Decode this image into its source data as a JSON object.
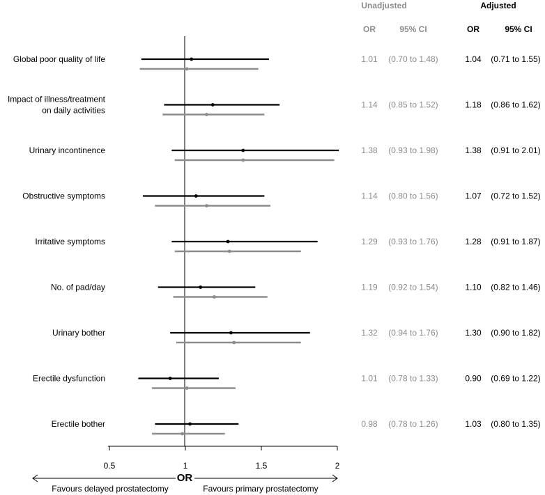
{
  "chart_data": {
    "type": "forest",
    "xlabel": "OR",
    "xlim": [
      0.5,
      2
    ],
    "ticks": [
      "0.5",
      "1",
      "1.5",
      "2"
    ],
    "ticks_values": [
      0.5,
      1,
      1.5,
      2
    ],
    "reference_line": 1,
    "favours_left": "Favours delayed prostatectomy",
    "favours_right": "Favours primary prostatectomy",
    "groups": {
      "unadjusted": {
        "label": "Unadjusted",
        "color": "#8c8c8c"
      },
      "adjusted": {
        "label": "Adjusted",
        "color": "#000000"
      }
    },
    "column_headers": {
      "or": "OR",
      "ci": "95% CI"
    },
    "series": [
      {
        "name": "Adjusted",
        "color": "#000000"
      },
      {
        "name": "Unadjusted",
        "color": "#8c8c8c"
      }
    ],
    "rows": [
      {
        "label": [
          "Global poor quality of life"
        ],
        "unadj": {
          "or": 1.01,
          "lo": 0.7,
          "hi": 1.48,
          "or_text": "1.01",
          "ci_text": "(0.70 to 1.48)"
        },
        "adj": {
          "or": 1.04,
          "lo": 0.71,
          "hi": 1.55,
          "or_text": "1.04",
          "ci_text": "(0.71 to 1.55)"
        }
      },
      {
        "label": [
          "Impact of illness/treatment",
          "on daily activities"
        ],
        "unadj": {
          "or": 1.14,
          "lo": 0.85,
          "hi": 1.52,
          "or_text": "1.14",
          "ci_text": "(0.85 to 1.52)"
        },
        "adj": {
          "or": 1.18,
          "lo": 0.86,
          "hi": 1.62,
          "or_text": "1.18",
          "ci_text": "(0.86 to 1.62)"
        }
      },
      {
        "label": [
          "Urinary incontinence"
        ],
        "unadj": {
          "or": 1.38,
          "lo": 0.93,
          "hi": 1.98,
          "or_text": "1.38",
          "ci_text": "(0.93 to 1.98)"
        },
        "adj": {
          "or": 1.38,
          "lo": 0.91,
          "hi": 2.01,
          "or_text": "1.38",
          "ci_text": "(0.91 to 2.01)"
        }
      },
      {
        "label": [
          "Obstructive symptoms"
        ],
        "unadj": {
          "or": 1.14,
          "lo": 0.8,
          "hi": 1.56,
          "or_text": "1.14",
          "ci_text": "(0.80 to 1.56)"
        },
        "adj": {
          "or": 1.07,
          "lo": 0.72,
          "hi": 1.52,
          "or_text": "1.07",
          "ci_text": "(0.72 to 1.52)"
        }
      },
      {
        "label": [
          "Irritative symptoms"
        ],
        "unadj": {
          "or": 1.29,
          "lo": 0.93,
          "hi": 1.76,
          "or_text": "1.29",
          "ci_text": "(0.93 to 1.76)"
        },
        "adj": {
          "or": 1.28,
          "lo": 0.91,
          "hi": 1.87,
          "or_text": "1.28",
          "ci_text": "(0.91 to 1.87)"
        }
      },
      {
        "label": [
          "No. of pad/day"
        ],
        "unadj": {
          "or": 1.19,
          "lo": 0.92,
          "hi": 1.54,
          "or_text": "1.19",
          "ci_text": "(0.92 to 1.54)"
        },
        "adj": {
          "or": 1.1,
          "lo": 0.82,
          "hi": 1.46,
          "or_text": "1.10",
          "ci_text": "(0.82 to 1.46)"
        }
      },
      {
        "label": [
          "Urinary bother"
        ],
        "unadj": {
          "or": 1.32,
          "lo": 0.94,
          "hi": 1.76,
          "or_text": "1.32",
          "ci_text": "(0.94 to 1.76)"
        },
        "adj": {
          "or": 1.3,
          "lo": 0.9,
          "hi": 1.82,
          "or_text": "1.30",
          "ci_text": "(0.90 to 1.82)"
        }
      },
      {
        "label": [
          "Erectile dysfunction"
        ],
        "unadj": {
          "or": 1.01,
          "lo": 0.78,
          "hi": 1.33,
          "or_text": "1.01",
          "ci_text": "(0.78 to 1.33)"
        },
        "adj": {
          "or": 0.9,
          "lo": 0.69,
          "hi": 1.22,
          "or_text": "0.90",
          "ci_text": "(0.69 to 1.22)"
        }
      },
      {
        "label": [
          "Erectile bother"
        ],
        "unadj": {
          "or": 0.98,
          "lo": 0.78,
          "hi": 1.26,
          "or_text": "0.98",
          "ci_text": "(0.78 to 1.26)"
        },
        "adj": {
          "or": 1.03,
          "lo": 0.8,
          "hi": 1.35,
          "or_text": "1.03",
          "ci_text": "(0.80 to 1.35)"
        }
      }
    ]
  }
}
